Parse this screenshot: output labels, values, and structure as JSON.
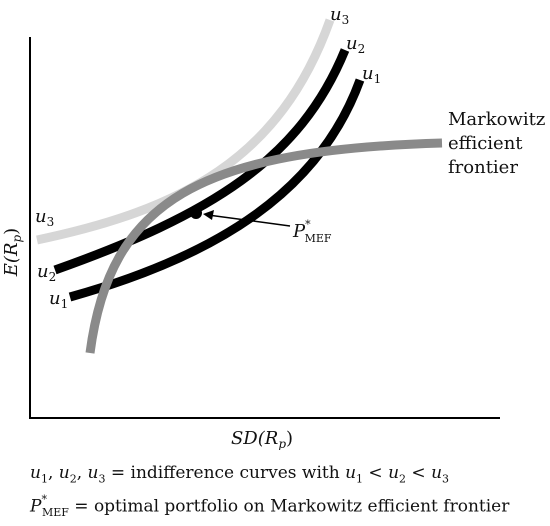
{
  "diagram": {
    "axes": {
      "y_label": {
        "main": "E(R",
        "sub": "p",
        "close": ")"
      },
      "x_label": {
        "main": "SD(R",
        "sub": "p",
        "close": ")"
      }
    },
    "curves": [
      {
        "id": "u3",
        "name": "u",
        "sub": "3",
        "color": "#d6d6d6"
      },
      {
        "id": "u2",
        "name": "u",
        "sub": "2",
        "color": "#000000"
      },
      {
        "id": "u1",
        "name": "u",
        "sub": "1",
        "color": "#000000"
      },
      {
        "id": "frontier",
        "name": "Markowitz efficient frontier",
        "color": "#8a8a8a"
      }
    ],
    "frontier_label": [
      "Markowitz",
      "efficient",
      "frontier"
    ],
    "optimal_point": {
      "main": "P",
      "sup": "*",
      "sub": "MEF"
    }
  },
  "legend": {
    "line1": {
      "u": "u",
      "s1": "1",
      "s2": "2",
      "s3": "3",
      "sep": ", ",
      "eq": " = indifference curves with ",
      "lt": " < "
    },
    "line2": {
      "p": "P",
      "star": "*",
      "sub": "MEF",
      "text": " = optimal portfolio on Markowitz efficient frontier"
    }
  }
}
